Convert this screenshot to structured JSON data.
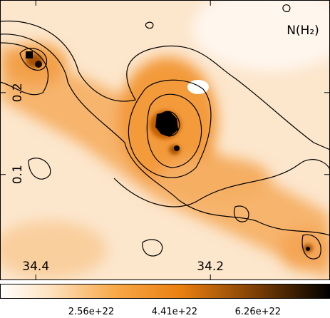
{
  "chart_data": {
    "type": "image",
    "label": "N(H₂)",
    "xlim": [
      34.441,
      34.063
    ],
    "xticks": [
      34.4,
      34.2
    ],
    "ylim": [
      -0.029,
      0.313
    ],
    "yticks": [
      0.1,
      0.2
    ],
    "colorbar": {
      "lim": [
        5.36e+21,
        7.86e+22
      ],
      "ticks": [
        2.56e+22,
        4.41e+22,
        6.26e+22
      ]
    }
  }
}
